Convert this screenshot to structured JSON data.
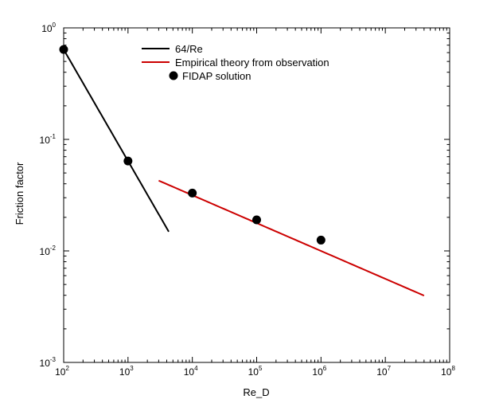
{
  "chart_data": {
    "type": "line",
    "title": "",
    "xlabel": "Re_D",
    "ylabel": "Friction factor",
    "xscale": "log",
    "yscale": "log",
    "xlim": [
      100,
      100000000
    ],
    "ylim": [
      0.001,
      1
    ],
    "grid": false,
    "legend_position": "top-center",
    "x_ticks": [
      {
        "base": "10",
        "exp": "2"
      },
      {
        "base": "10",
        "exp": "3"
      },
      {
        "base": "10",
        "exp": "4"
      },
      {
        "base": "10",
        "exp": "5"
      },
      {
        "base": "10",
        "exp": "6"
      },
      {
        "base": "10",
        "exp": "7"
      },
      {
        "base": "10",
        "exp": "8"
      }
    ],
    "y_ticks": [
      {
        "base": "10",
        "exp": "-3"
      },
      {
        "base": "10",
        "exp": "-2"
      },
      {
        "base": "10",
        "exp": "-1"
      },
      {
        "base": "10",
        "exp": "0"
      }
    ],
    "series": [
      {
        "name": "64/Re",
        "kind": "line",
        "color": "#000000",
        "x_range": [
          100,
          4300
        ],
        "formula": "f = 64/Re"
      },
      {
        "name": "Empirical theory from observation",
        "kind": "line",
        "color": "#cc0000",
        "x_range": [
          3000,
          40000000
        ],
        "formula": "f = 0.316/Re^0.25"
      },
      {
        "name": "FIDAP solution",
        "kind": "scatter",
        "color": "#000000",
        "points": [
          {
            "x": 100,
            "y": 0.64
          },
          {
            "x": 1000,
            "y": 0.064
          },
          {
            "x": 10000,
            "y": 0.033
          },
          {
            "x": 100000,
            "y": 0.019
          },
          {
            "x": 1000000,
            "y": 0.0125
          }
        ]
      }
    ]
  }
}
